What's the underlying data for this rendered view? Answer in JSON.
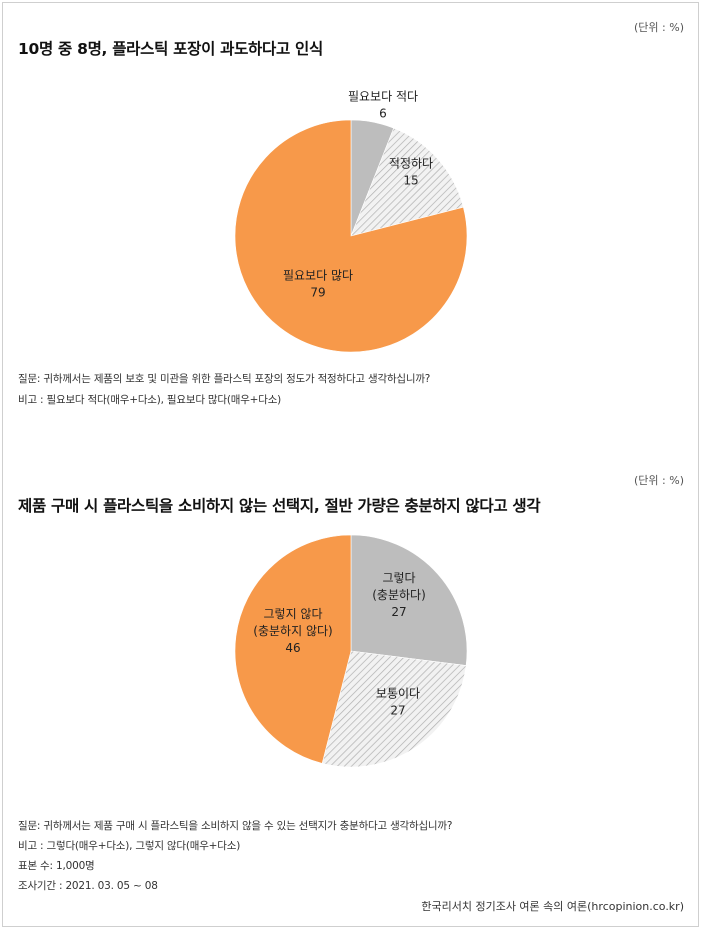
{
  "source": "한국리서치 정기조사 여론 속의 여론(hrcopinion.co.kr)",
  "colors": {
    "orange": "#F7994A",
    "gray": "#BDBDBD",
    "hatch_bg": "#F2F2F2",
    "hatch_line": "#B0B0B0"
  },
  "chart_data": [
    {
      "type": "pie",
      "title": "10명 중 8명, 플라스틱 포장이 과도하다고 인식",
      "unit": "(단위 : %)",
      "slices": [
        {
          "label": "필요보다 적다",
          "value": 6,
          "fill": "gray"
        },
        {
          "label": "적정하다",
          "value": 15,
          "fill": "hatch"
        },
        {
          "label": "필요보다 많다",
          "value": 79,
          "fill": "orange"
        }
      ],
      "notes": [
        "질문: 귀하께서는 제품의 보호 및 미관을 위한 플라스틱 포장의 정도가 적정하다고 생각하십니까?",
        "비고 : 필요보다 적다(매우+다소), 필요보다 많다(매우+다소)"
      ]
    },
    {
      "type": "pie",
      "title": "제품 구매 시 플라스틱을 소비하지 않는 선택지, 절반 가량은 충분하지 않다고 생각",
      "unit": "(단위 : %)",
      "slices": [
        {
          "label": "그렇다",
          "sublabel": "(충분하다)",
          "value": 27,
          "fill": "gray"
        },
        {
          "label": "보통이다",
          "value": 27,
          "fill": "hatch"
        },
        {
          "label": "그렇지 않다",
          "sublabel": "(충분하지 않다)",
          "value": 46,
          "fill": "orange"
        }
      ],
      "notes": [
        "질문: 귀하께서는 제품 구매 시 플라스틱을 소비하지 않을 수 있는 선택지가 충분하다고 생각하십니까?",
        "비고 : 그렇다(매우+다소),  그렇지 않다(매우+다소)",
        "표본 수: 1,000명",
        "조사기간 : 2021. 03. 05 ~ 08"
      ]
    }
  ]
}
